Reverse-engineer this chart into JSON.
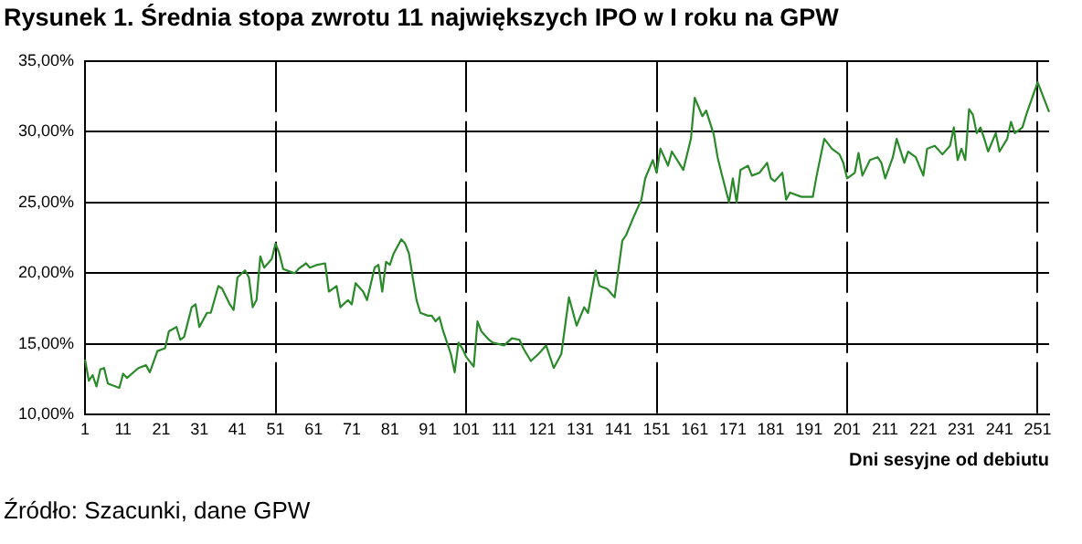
{
  "chart_data": {
    "type": "line",
    "title": "Rysunek 1. Średnia stopa zwrotu 11 największych IPO w I roku na GPW",
    "xlabel": "Dni sesyjne od debiutu",
    "annotations": [
      "Źródło: Szacunki, dane GPW"
    ],
    "x": [
      1,
      2,
      3,
      4,
      5,
      6,
      7,
      10,
      11,
      12,
      15,
      17,
      18,
      20,
      22,
      23,
      25,
      26,
      27,
      29,
      30,
      31,
      33,
      34,
      36,
      37,
      39,
      40,
      41,
      43,
      44,
      45,
      46,
      47,
      48,
      50,
      51,
      52,
      53,
      56,
      57,
      59,
      60,
      62,
      64,
      65,
      67,
      68,
      70,
      71,
      72,
      74,
      75,
      77,
      78,
      79,
      80,
      81,
      82,
      84,
      85,
      86,
      87,
      88,
      89,
      91,
      92,
      93,
      94,
      95,
      97,
      98,
      99,
      100,
      101,
      103,
      104,
      105,
      107,
      108,
      111,
      113,
      115,
      116,
      118,
      120,
      122,
      124,
      126,
      128,
      130,
      132,
      133,
      135,
      136,
      138,
      140,
      142,
      143,
      145,
      147,
      148,
      150,
      151,
      152,
      154,
      155,
      158,
      160,
      161,
      163,
      164,
      166,
      167,
      168,
      170,
      171,
      172,
      173,
      175,
      176,
      178,
      180,
      181,
      182,
      184,
      185,
      186,
      189,
      192,
      193,
      195,
      197,
      199,
      200,
      201,
      203,
      204,
      205,
      207,
      209,
      210,
      211,
      213,
      214,
      216,
      217,
      219,
      221,
      222,
      224,
      226,
      228,
      229,
      230,
      231,
      232,
      233,
      234,
      235,
      236,
      237,
      238,
      240,
      241,
      243,
      244,
      245,
      247,
      248,
      251,
      254
    ],
    "series": [
      {
        "color": "#2a8a2a",
        "values": [
          13.9,
          12.4,
          12.8,
          12.0,
          13.2,
          13.3,
          12.2,
          11.9,
          12.9,
          12.6,
          13.3,
          13.5,
          13.0,
          14.5,
          14.7,
          15.9,
          16.2,
          15.3,
          15.5,
          17.6,
          17.8,
          16.2,
          17.2,
          17.2,
          19.1,
          18.9,
          17.8,
          17.4,
          19.7,
          20.2,
          19.7,
          17.6,
          18.1,
          21.2,
          20.4,
          21.0,
          22.1,
          21.4,
          20.3,
          20.0,
          20.3,
          20.7,
          20.4,
          20.6,
          20.7,
          18.7,
          19.1,
          17.6,
          18.1,
          17.8,
          19.3,
          18.7,
          18.1,
          20.4,
          20.6,
          18.7,
          20.8,
          20.6,
          21.4,
          22.4,
          22.1,
          21.4,
          19.7,
          18.1,
          17.2,
          17.0,
          17.0,
          16.6,
          16.9,
          15.9,
          14.3,
          13.0,
          15.1,
          14.7,
          14.1,
          13.4,
          16.6,
          15.9,
          15.3,
          15.1,
          14.9,
          15.4,
          15.3,
          14.7,
          13.8,
          14.3,
          14.9,
          13.3,
          14.3,
          18.3,
          16.3,
          17.6,
          17.2,
          20.2,
          19.1,
          18.9,
          18.3,
          22.3,
          22.7,
          24.0,
          25.2,
          26.7,
          28.0,
          27.1,
          28.8,
          27.6,
          28.6,
          27.3,
          29.5,
          32.4,
          31.1,
          31.5,
          29.8,
          28.2,
          27.1,
          25.0,
          26.7,
          25.0,
          27.3,
          27.6,
          26.9,
          27.1,
          27.8,
          26.7,
          26.5,
          27.1,
          25.2,
          25.7,
          25.4,
          25.4,
          26.9,
          29.5,
          28.8,
          28.4,
          27.8,
          26.7,
          27.1,
          28.5,
          26.9,
          28.0,
          28.2,
          27.8,
          26.7,
          28.2,
          29.5,
          27.8,
          28.6,
          28.2,
          26.9,
          28.8,
          29.0,
          28.4,
          29.0,
          30.3,
          28.0,
          28.8,
          28.0,
          31.6,
          31.2,
          29.9,
          30.3,
          29.5,
          28.6,
          29.9,
          28.6,
          29.5,
          30.7,
          29.9,
          30.3,
          31.2,
          33.5,
          31.4
        ]
      }
    ],
    "xlim": [
      1,
      254
    ],
    "xticks": [
      1,
      11,
      21,
      31,
      41,
      51,
      61,
      71,
      81,
      91,
      101,
      111,
      121,
      131,
      141,
      151,
      161,
      171,
      181,
      191,
      201,
      211,
      221,
      231,
      241,
      251
    ],
    "ylim": [
      10,
      35
    ],
    "yticks": [
      {
        "value": 10,
        "label": "10,00%"
      },
      {
        "value": 15,
        "label": "15,00%"
      },
      {
        "value": 20,
        "label": "20,00%"
      },
      {
        "value": 25,
        "label": "25,00%"
      },
      {
        "value": 30,
        "label": "30,00%"
      },
      {
        "value": 35,
        "label": "35,00%"
      }
    ],
    "grid": true,
    "legend": false,
    "marker": "none",
    "line_style": "solid"
  }
}
